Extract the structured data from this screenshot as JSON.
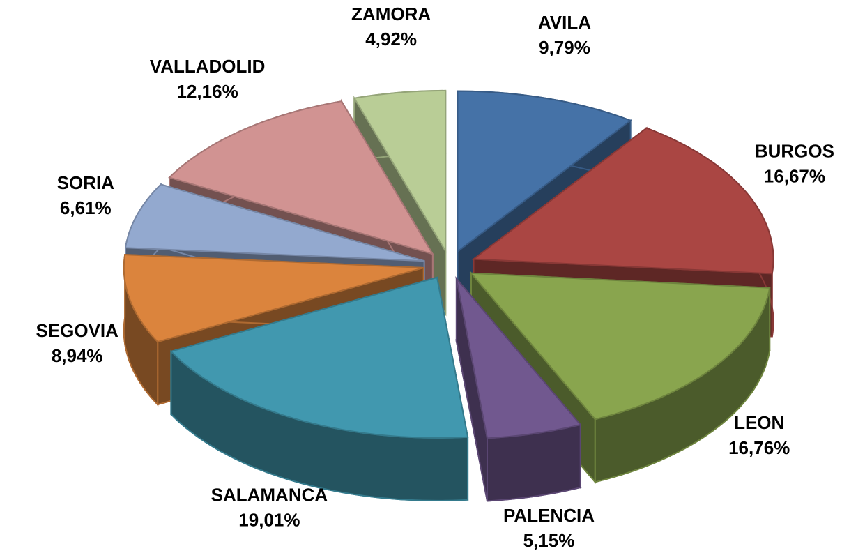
{
  "chart_data": {
    "type": "pie3d",
    "categories": [
      "AVILA",
      "BURGOS",
      "LEON",
      "PALENCIA",
      "SALAMANCA",
      "SEGOVIA",
      "SORIA",
      "VALLADOLID",
      "ZAMORA"
    ],
    "values": [
      9.79,
      16.67,
      16.76,
      5.15,
      19.01,
      8.94,
      6.61,
      12.16,
      4.92
    ],
    "value_labels": [
      "9,79%",
      "16,67%",
      "16,76%",
      "5,15%",
      "19,01%",
      "8,94%",
      "6,61%",
      "12,16%",
      "4,92%"
    ],
    "colors": [
      "#4572a7",
      "#aa4643",
      "#89a54e",
      "#71588f",
      "#4198af",
      "#db843d",
      "#93a9cf",
      "#d19392",
      "#b9cd96"
    ]
  }
}
